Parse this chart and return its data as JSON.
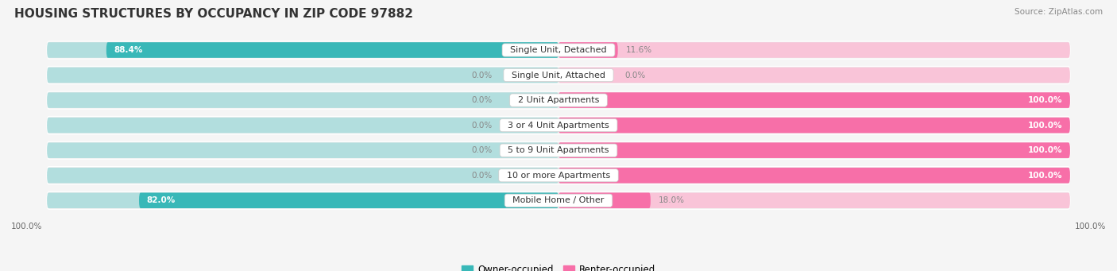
{
  "title": "HOUSING STRUCTURES BY OCCUPANCY IN ZIP CODE 97882",
  "source": "Source: ZipAtlas.com",
  "categories": [
    "Single Unit, Detached",
    "Single Unit, Attached",
    "2 Unit Apartments",
    "3 or 4 Unit Apartments",
    "5 to 9 Unit Apartments",
    "10 or more Apartments",
    "Mobile Home / Other"
  ],
  "owner_pct": [
    88.4,
    0.0,
    0.0,
    0.0,
    0.0,
    0.0,
    82.0
  ],
  "renter_pct": [
    11.6,
    0.0,
    100.0,
    100.0,
    100.0,
    100.0,
    18.0
  ],
  "owner_color": "#39b8b8",
  "renter_color": "#f76fa8",
  "owner_bg_color": "#b2dede",
  "renter_bg_color": "#f9c4d8",
  "row_bg_color": "#ebebeb",
  "title_fontsize": 11,
  "label_fontsize": 8,
  "value_fontsize": 7.5,
  "legend_fontsize": 8.5,
  "source_fontsize": 7.5
}
